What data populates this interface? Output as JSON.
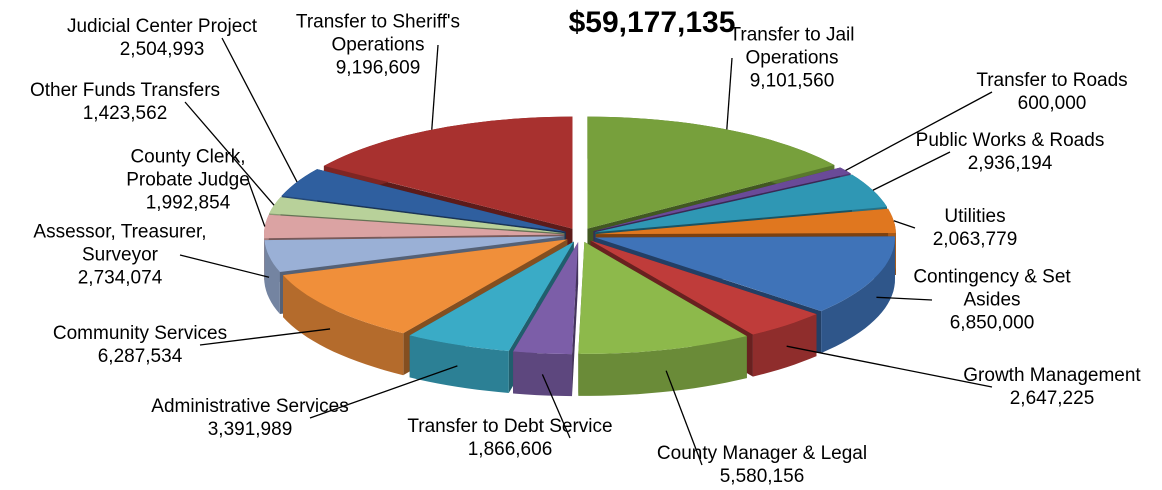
{
  "chart_data": {
    "type": "pie",
    "title": "$59,177,135",
    "categories": [
      "Transfer to Jail Operations",
      "Transfer to Roads",
      "Public Works & Roads",
      "Utilities",
      "Contingency & Set Asides",
      "Growth Management",
      "County Manager & Legal",
      "Transfer to Debt Service",
      "Administrative Services",
      "Community Services",
      "Assessor, Treasurer, Surveyor",
      "County Clerk, Probate Judge",
      "Other Funds Transfers",
      "Judicial Center Project",
      "Transfer to Sheriff's Operations"
    ],
    "values": [
      9101560,
      600000,
      2936194,
      2063779,
      6850000,
      2647225,
      5580156,
      1866606,
      3391989,
      6287534,
      2734074,
      1992854,
      1423562,
      2504993,
      9196609
    ],
    "value_labels": [
      "9,101,560",
      "600,000",
      "2,936,194",
      "2,063,779",
      "6,850,000",
      "2,647,225",
      "5,580,156",
      "1,866,606",
      "3,391,989",
      "6,287,534",
      "2,734,074",
      "1,992,854",
      "1,423,562",
      "2,504,993",
      "9,196,609"
    ],
    "colors": [
      "#77a03c",
      "#6a4a98",
      "#2f97b4",
      "#e0771f",
      "#3f73b8",
      "#bf3c3a",
      "#8db94b",
      "#7c5ea8",
      "#3aabc6",
      "#f08f3a",
      "#9ab0d6",
      "#dba3a3",
      "#b8d19a",
      "#2f5f9f",
      "#a8312f"
    ]
  }
}
